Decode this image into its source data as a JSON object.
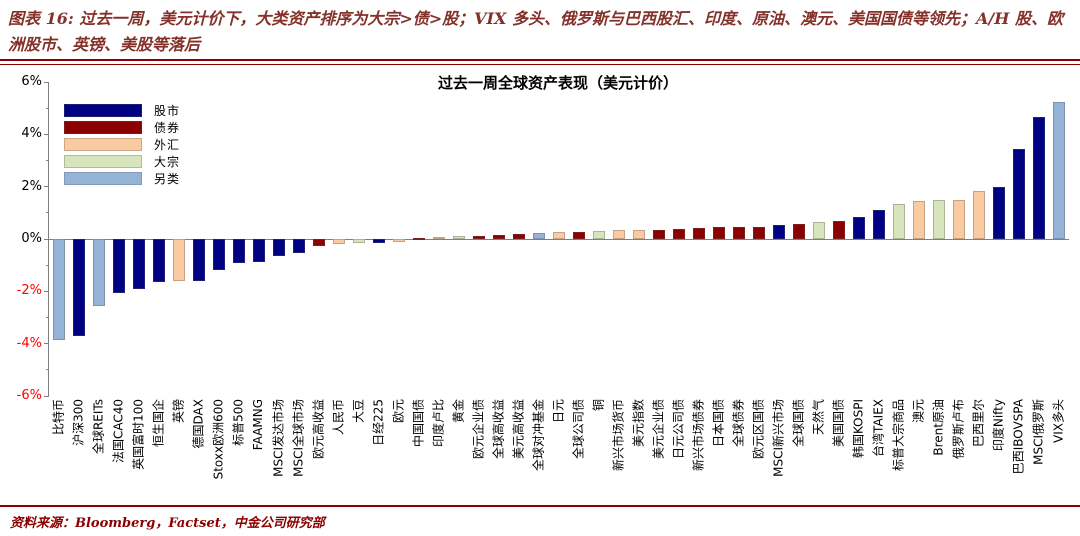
{
  "header": {
    "title": "图表 16: 过去一周，美元计价下，大类资产排序为大宗>债>股；VIX 多头、俄罗斯与巴西股汇、印度、原油、澳元、美国国债等领先；A/H 股、欧洲股市、英镑、美股等落后"
  },
  "source": {
    "text": "资料来源：Bloomberg，Factset，中金公司研究部"
  },
  "colors": {
    "header_text": "#84312A",
    "rule": "#8B0000",
    "axis": "#7F7F7F",
    "zero_line": "#808080",
    "negative_tick": "#FF0000",
    "stocks": "#000082",
    "bonds": "#8B0000",
    "fx": "#FACBA0",
    "commodities": "#D8E4BC",
    "alternatives": "#95B3D7"
  },
  "chart_data": {
    "type": "bar",
    "title": "过去一周全球资产表现（美元计价）",
    "ylabel": "",
    "xlabel": "",
    "ylim": [
      -6,
      6
    ],
    "yticks": [
      6,
      4,
      2,
      0,
      -2,
      -4,
      -6
    ],
    "ytick_suffix": "%",
    "grid": false,
    "legend_position": "top-left",
    "legend": [
      {
        "key": "股市",
        "label": "股市",
        "color": "#000082"
      },
      {
        "key": "债券",
        "label": "债券",
        "color": "#8B0000"
      },
      {
        "key": "外汇",
        "label": "外汇",
        "color": "#FACBA0"
      },
      {
        "key": "大宗",
        "label": "大宗",
        "color": "#D8E4BC"
      },
      {
        "key": "另类",
        "label": "另类",
        "color": "#95B3D7"
      }
    ],
    "bars": [
      {
        "label": "比特币",
        "category": "另类",
        "value": -3.85
      },
      {
        "label": "沪深300",
        "category": "股市",
        "value": -3.7
      },
      {
        "label": "全球REITs",
        "category": "另类",
        "value": -2.55
      },
      {
        "label": "法国CAC40",
        "category": "股市",
        "value": -2.05
      },
      {
        "label": "英国富时100",
        "category": "股市",
        "value": -1.9
      },
      {
        "label": "恒生国企",
        "category": "股市",
        "value": -1.65
      },
      {
        "label": "英镑",
        "category": "外汇",
        "value": -1.62
      },
      {
        "label": "德国DAX",
        "category": "股市",
        "value": -1.6
      },
      {
        "label": "Stoxx欧洲600",
        "category": "股市",
        "value": -1.2
      },
      {
        "label": "标普500",
        "category": "股市",
        "value": -0.92
      },
      {
        "label": "FAAMNG",
        "category": "股市",
        "value": -0.88
      },
      {
        "label": "MSCI发达市场",
        "category": "股市",
        "value": -0.65
      },
      {
        "label": "MSCI全球市场",
        "category": "股市",
        "value": -0.53
      },
      {
        "label": "欧元高收益",
        "category": "债券",
        "value": -0.25
      },
      {
        "label": "人民币",
        "category": "外汇",
        "value": -0.18
      },
      {
        "label": "大豆",
        "category": "大宗",
        "value": -0.16
      },
      {
        "label": "日经225",
        "category": "股市",
        "value": -0.14
      },
      {
        "label": "欧元",
        "category": "外汇",
        "value": -0.1
      },
      {
        "label": "中国国债",
        "category": "债券",
        "value": 0.04
      },
      {
        "label": "印度卢比",
        "category": "外汇",
        "value": 0.06
      },
      {
        "label": "黄金",
        "category": "大宗",
        "value": 0.1
      },
      {
        "label": "欧元企业债",
        "category": "债券",
        "value": 0.13
      },
      {
        "label": "全球高收益",
        "category": "债券",
        "value": 0.16
      },
      {
        "label": "美元高收益",
        "category": "债券",
        "value": 0.18
      },
      {
        "label": "全球对冲基金",
        "category": "另类",
        "value": 0.23
      },
      {
        "label": "日元",
        "category": "外汇",
        "value": 0.25
      },
      {
        "label": "全球公司债",
        "category": "债券",
        "value": 0.28
      },
      {
        "label": "铜",
        "category": "大宗",
        "value": 0.3
      },
      {
        "label": "新兴市场货币",
        "category": "外汇",
        "value": 0.33
      },
      {
        "label": "美元指数",
        "category": "外汇",
        "value": 0.34
      },
      {
        "label": "美元企业债",
        "category": "债券",
        "value": 0.36
      },
      {
        "label": "日元公司债",
        "category": "债券",
        "value": 0.38
      },
      {
        "label": "新兴市场债券",
        "category": "债券",
        "value": 0.43
      },
      {
        "label": "日本国债",
        "category": "债券",
        "value": 0.45
      },
      {
        "label": "全球债券",
        "category": "债券",
        "value": 0.46
      },
      {
        "label": "欧元区国债",
        "category": "债券",
        "value": 0.47
      },
      {
        "label": "MSCI新兴市场",
        "category": "股市",
        "value": 0.55
      },
      {
        "label": "全球国债",
        "category": "债券",
        "value": 0.58
      },
      {
        "label": "天然气",
        "category": "大宗",
        "value": 0.64
      },
      {
        "label": "美国国债",
        "category": "债券",
        "value": 0.67
      },
      {
        "label": "韩国KOSPI",
        "category": "股市",
        "value": 0.84
      },
      {
        "label": "台湾TAIEX",
        "category": "股市",
        "value": 1.1
      },
      {
        "label": "标普大宗商品",
        "category": "大宗",
        "value": 1.35
      },
      {
        "label": "澳元",
        "category": "外汇",
        "value": 1.47
      },
      {
        "label": "Brent原油",
        "category": "大宗",
        "value": 1.49
      },
      {
        "label": "俄罗斯卢布",
        "category": "外汇",
        "value": 1.5
      },
      {
        "label": "巴西里尔",
        "category": "外汇",
        "value": 1.85
      },
      {
        "label": "印度Nifty",
        "category": "股市",
        "value": 1.97
      },
      {
        "label": "巴西IBOVSPA",
        "category": "股市",
        "value": 3.43
      },
      {
        "label": "MSCI俄罗斯",
        "category": "股市",
        "value": 4.65
      },
      {
        "label": "VIX多头",
        "category": "另类",
        "value": 5.25
      }
    ]
  }
}
